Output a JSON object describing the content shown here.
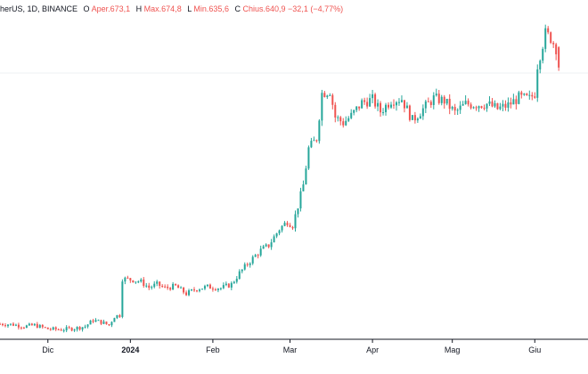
{
  "legend": {
    "symbol": "herUS, 1D, BINANCE",
    "open_label": "O",
    "open_text": "Aper.",
    "open": "673,1",
    "high_label": "H",
    "high_text": "Max.",
    "high": "674,8",
    "low_label": "L",
    "low_text": "Min.",
    "low": "635,6",
    "close_label": "C",
    "close_text": "Chius.",
    "close": "640,9",
    "change": "−32,1",
    "change_pct": "(−4,77%)"
  },
  "colors": {
    "up": "#26a69a",
    "down": "#ef5350",
    "grid": "#eef0f3",
    "axis": "#131722",
    "background": "#ffffff"
  },
  "chart_data": {
    "type": "candlestick",
    "interval": "1D",
    "exchange": "BINANCE",
    "x_ticks": [
      {
        "label": "Dic",
        "date": "2023-12-01",
        "bold": false
      },
      {
        "label": "2024",
        "date": "2024-01-01",
        "bold": true
      },
      {
        "label": "Feb",
        "date": "2024-02-01",
        "bold": false
      },
      {
        "label": "Mar",
        "date": "2024-03-01",
        "bold": false
      },
      {
        "label": "Apr",
        "date": "2024-04-01",
        "bold": false
      },
      {
        "label": "Mag",
        "date": "2024-05-01",
        "bold": false
      },
      {
        "label": "Giu",
        "date": "2024-06-01",
        "bold": false
      }
    ],
    "ylim": [
      210,
      720
    ],
    "xlim": [
      "2023-11-13",
      "2024-06-21"
    ],
    "close_path": [
      [
        "2023-11-13",
        233
      ],
      [
        "2023-11-18",
        232
      ],
      [
        "2023-11-22",
        229
      ],
      [
        "2023-11-26",
        231
      ],
      [
        "2023-12-01",
        225
      ],
      [
        "2023-12-06",
        224
      ],
      [
        "2023-12-11",
        226
      ],
      [
        "2023-12-15",
        229
      ],
      [
        "2023-12-18",
        239
      ],
      [
        "2023-12-21",
        236
      ],
      [
        "2023-12-24",
        231
      ],
      [
        "2023-12-26",
        245
      ],
      [
        "2023-12-28",
        247
      ],
      [
        "2023-12-29",
        305
      ],
      [
        "2024-01-02",
        303
      ],
      [
        "2024-01-05",
        300
      ],
      [
        "2024-01-08",
        291
      ],
      [
        "2024-01-11",
        296
      ],
      [
        "2024-01-14",
        290
      ],
      [
        "2024-01-18",
        293
      ],
      [
        "2024-01-22",
        281
      ],
      [
        "2024-01-26",
        289
      ],
      [
        "2024-01-30",
        292
      ],
      [
        "2024-02-04",
        290
      ],
      [
        "2024-02-08",
        296
      ],
      [
        "2024-02-11",
        314
      ],
      [
        "2024-02-15",
        333
      ],
      [
        "2024-02-19",
        350
      ],
      [
        "2024-02-22",
        358
      ],
      [
        "2024-02-26",
        384
      ],
      [
        "2024-02-29",
        396
      ],
      [
        "2024-03-02",
        390
      ],
      [
        "2024-03-04",
        421
      ],
      [
        "2024-03-06",
        454
      ],
      [
        "2024-03-08",
        512
      ],
      [
        "2024-03-11",
        528
      ],
      [
        "2024-03-13",
        600
      ],
      [
        "2024-03-16",
        604
      ],
      [
        "2024-03-18",
        562
      ],
      [
        "2024-03-21",
        553
      ],
      [
        "2024-03-24",
        564
      ],
      [
        "2024-03-28",
        585
      ],
      [
        "2024-04-01",
        590
      ],
      [
        "2024-04-04",
        571
      ],
      [
        "2024-04-08",
        589
      ],
      [
        "2024-04-12",
        591
      ],
      [
        "2024-04-16",
        557
      ],
      [
        "2024-04-20",
        575
      ],
      [
        "2024-04-24",
        592
      ],
      [
        "2024-04-28",
        588
      ],
      [
        "2024-05-02",
        569
      ],
      [
        "2024-05-06",
        583
      ],
      [
        "2024-05-10",
        582
      ],
      [
        "2024-05-14",
        583
      ],
      [
        "2024-05-18",
        575
      ],
      [
        "2024-05-22",
        581
      ],
      [
        "2024-05-26",
        593
      ],
      [
        "2024-05-30",
        591
      ],
      [
        "2024-06-01",
        600
      ],
      [
        "2024-06-02",
        645
      ],
      [
        "2024-06-05",
        695
      ],
      [
        "2024-06-07",
        688
      ],
      [
        "2024-06-09",
        672
      ],
      [
        "2024-06-10",
        641
      ]
    ],
    "last_candle": {
      "date": "2024-06-10",
      "open": 673.1,
      "high": 674.8,
      "low": 635.6,
      "close": 640.9,
      "change": -32.1,
      "change_pct": -4.77
    },
    "grid": true,
    "legend_position": "top-left"
  }
}
